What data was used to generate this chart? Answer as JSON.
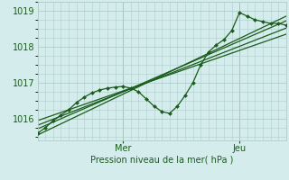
{
  "bg_color": "#d4ecec",
  "grid_color": "#b0cccc",
  "line_color": "#1a5c1a",
  "marker_color": "#1a5c1a",
  "xlabel": "Pression niveau de la mer( hPa )",
  "xlabel_color": "#1a5c1a",
  "tick_color": "#1a5c1a",
  "ylim": [
    1015.4,
    1019.25
  ],
  "yticks": [
    1016,
    1017,
    1018,
    1019
  ],
  "xlim": [
    0,
    96
  ],
  "xday_labels": [
    [
      33,
      "Mer"
    ],
    [
      78,
      "Jeu"
    ]
  ],
  "straight_lines": [
    {
      "x0": 0,
      "y0": 1015.55,
      "x1": 96,
      "y1": 1018.85
    },
    {
      "x0": 0,
      "y0": 1015.72,
      "x1": 96,
      "y1": 1018.72
    },
    {
      "x0": 0,
      "y0": 1015.82,
      "x1": 96,
      "y1": 1018.52
    },
    {
      "x0": 0,
      "y0": 1015.95,
      "x1": 96,
      "y1": 1018.35
    }
  ],
  "forecast_x": [
    0,
    3,
    6,
    9,
    12,
    15,
    18,
    21,
    24,
    27,
    30,
    33,
    36,
    39,
    42,
    45,
    48,
    51,
    54,
    57,
    60,
    63,
    66,
    69,
    72,
    75,
    78,
    81,
    84,
    87,
    90,
    93,
    96
  ],
  "forecast_y": [
    1015.6,
    1015.75,
    1015.95,
    1016.1,
    1016.25,
    1016.45,
    1016.6,
    1016.72,
    1016.8,
    1016.85,
    1016.88,
    1016.9,
    1016.85,
    1016.75,
    1016.55,
    1016.35,
    1016.2,
    1016.15,
    1016.35,
    1016.65,
    1017.0,
    1017.5,
    1017.85,
    1018.05,
    1018.2,
    1018.45,
    1018.95,
    1018.85,
    1018.75,
    1018.7,
    1018.65,
    1018.65,
    1018.6
  ]
}
